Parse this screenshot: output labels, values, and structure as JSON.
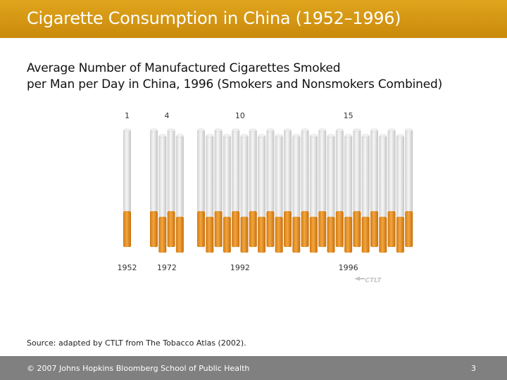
{
  "header": {
    "title": "Cigarette Consumption in China (1952–1996)"
  },
  "chart_title_lines": [
    "Average Number of Manufactured Cigarettes Smoked",
    "per Man per Day in China, 1996 (Smokers and Nonsmokers Combined)"
  ],
  "chart_data": {
    "type": "bar",
    "title": "Average Number of Manufactured Cigarettes Smoked per Man per Day in China, 1996 (Smokers and Nonsmokers Combined)",
    "categories": [
      "1952",
      "1972",
      "1992",
      "1996"
    ],
    "values": [
      1,
      4,
      10,
      15
    ],
    "xlabel": "",
    "ylabel": "",
    "grid": false,
    "colors": {
      "filter": "#e8961e",
      "paper": "#e6e6e6",
      "paper_edge": "#c8c8c8"
    }
  },
  "watermark": "CTLT",
  "source": "Source: adapted by CTLT from The Tobacco Atlas (2002).",
  "footer": {
    "copyright": "© 2007 Johns Hopkins Bloomberg School of Public Health",
    "page": "3"
  }
}
